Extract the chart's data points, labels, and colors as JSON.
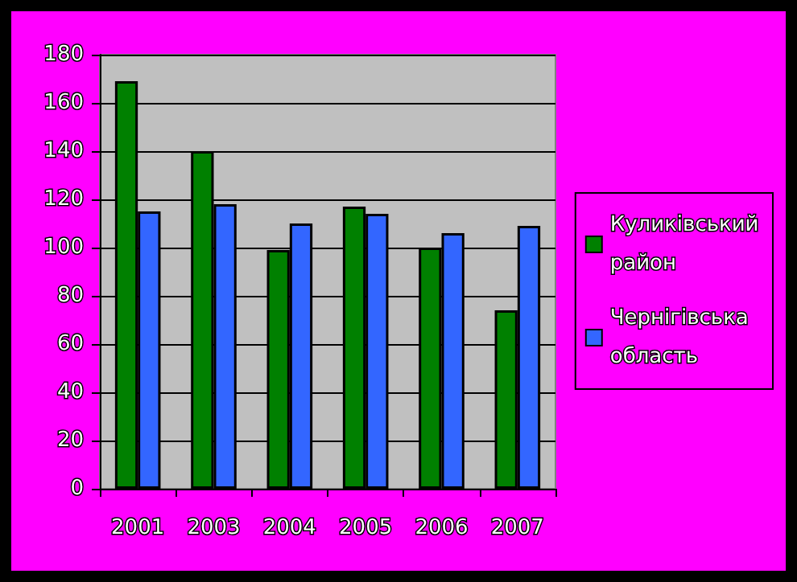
{
  "chart_data": {
    "type": "bar",
    "categories": [
      "2001",
      "2003",
      "2004",
      "2005",
      "2006",
      "2007"
    ],
    "series": [
      {
        "name": "Куликівський район",
        "color": "#008000",
        "values": [
          169,
          140,
          99,
          117,
          100,
          74
        ]
      },
      {
        "name": "Чернігівська область",
        "color": "#3366ff",
        "values": [
          115,
          118,
          110,
          114,
          106,
          109
        ]
      }
    ],
    "ylim": [
      0,
      180
    ],
    "yticks": [
      0,
      20,
      40,
      60,
      80,
      100,
      120,
      140,
      160,
      180
    ],
    "grid": "y",
    "legend": "right"
  }
}
